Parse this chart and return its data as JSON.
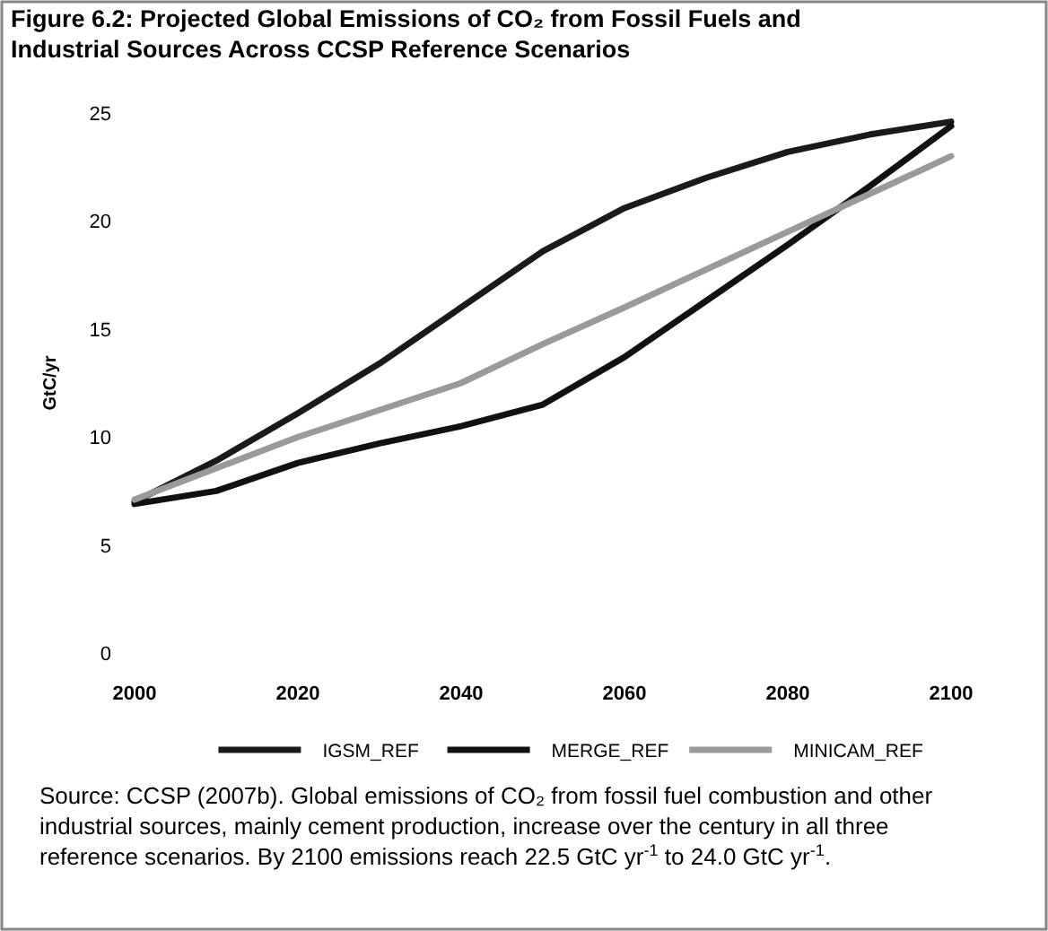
{
  "chart_data": {
    "type": "line",
    "title": "Figure 6.2: Projected Global Emissions of CO₂ from Fossil Fuels and Industrial Sources Across CCSP Reference Scenarios",
    "ylabel": "GtC/yr",
    "x": [
      2000,
      2010,
      2020,
      2030,
      2040,
      2050,
      2060,
      2070,
      2080,
      2090,
      2100
    ],
    "series": [
      {
        "name": "IGSM_REF",
        "color": "#1a1a1a",
        "values": [
          7.0,
          8.9,
          11.1,
          13.4,
          16.0,
          18.6,
          20.6,
          22.0,
          23.2,
          24.0,
          24.6
        ]
      },
      {
        "name": "MERGE_REF",
        "color": "#111111",
        "values": [
          6.9,
          7.5,
          8.8,
          9.7,
          10.5,
          11.5,
          13.7,
          16.3,
          18.9,
          21.6,
          24.4
        ]
      },
      {
        "name": "MINICAM_REF",
        "color": "#9a9a9a",
        "values": [
          7.1,
          null,
          10.0,
          null,
          12.5,
          14.3,
          16.0,
          null,
          19.5,
          null,
          23.0
        ]
      }
    ],
    "xlim": [
      2000,
      2100
    ],
    "xticks": [
      2000,
      2020,
      2040,
      2060,
      2080,
      2100
    ],
    "ylim": [
      0,
      25
    ],
    "yticks": [
      0,
      5,
      10,
      15,
      20,
      25
    ],
    "grid": false,
    "legend": "bottom",
    "marker": "none",
    "line_style": "solid",
    "annotations": [
      "Source: CCSP (2007b). Global emissions of CO₂ from fossil fuel combustion and other industrial sources, mainly cement production, increase over the century in all three reference scenarios.  By 2100 emissions reach 22.5 GtC yr$^{-1}$ to 24.0 GtC yr$^{-1}$."
    ]
  }
}
